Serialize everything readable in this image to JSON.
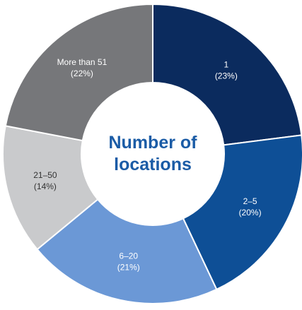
{
  "chart_data": {
    "type": "donut",
    "title": "Number of locations",
    "categories": [
      "1",
      "2–5",
      "6–20",
      "21–50",
      "More than 51"
    ],
    "values": [
      23,
      20,
      21,
      14,
      22
    ],
    "value_labels": [
      "(23%)",
      "(20%)",
      "(21%)",
      "(14%)",
      "(22%)"
    ],
    "colors": [
      "#0b2b5e",
      "#0e4f96",
      "#6b98d6",
      "#c9cacc",
      "#76777a"
    ]
  }
}
